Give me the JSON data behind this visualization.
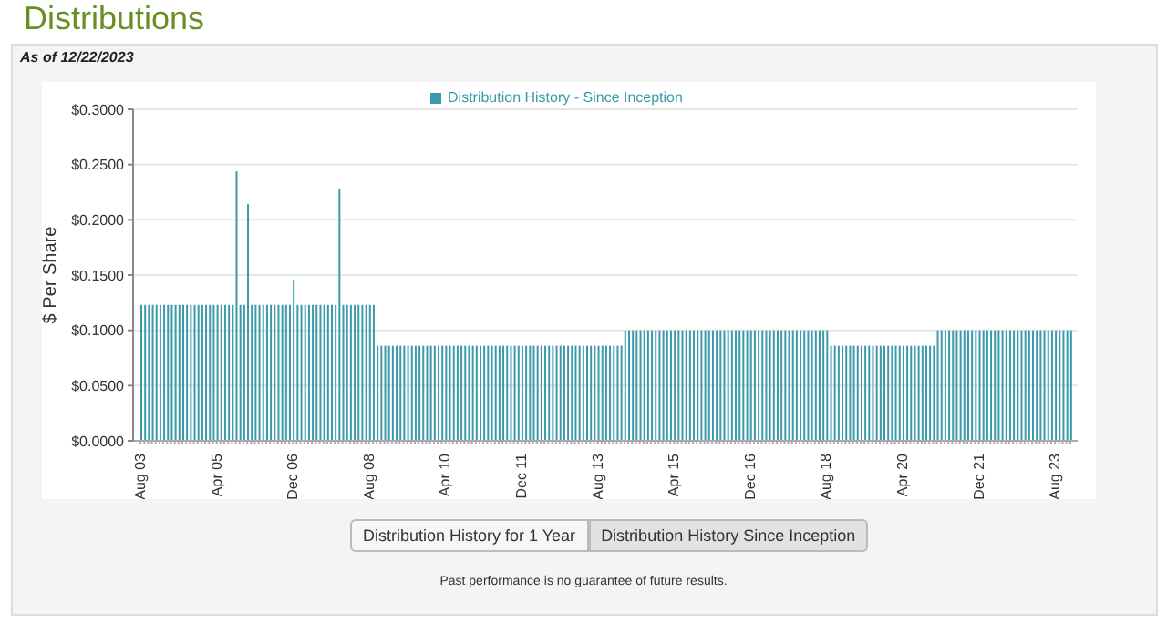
{
  "chart_data": {
    "type": "bar",
    "title": "Distributions",
    "subtitle": "As of 12/22/2023",
    "ylabel": "$ Per Share",
    "annotations": [
      "Distribution History for 1 Year",
      "Distribution History Since Inception",
      "Past performance is no guarantee of future results."
    ],
    "categories": [
      "Aug 03",
      null,
      null,
      null,
      null,
      null,
      null,
      null,
      null,
      null,
      null,
      null,
      null,
      null,
      null,
      null,
      null,
      null,
      null,
      null,
      "Apr 05",
      null,
      null,
      null,
      null,
      null,
      null,
      null,
      null,
      null,
      null,
      null,
      null,
      null,
      null,
      null,
      null,
      null,
      null,
      null,
      "Dec 06",
      null,
      null,
      null,
      null,
      null,
      null,
      null,
      null,
      null,
      null,
      null,
      null,
      null,
      null,
      null,
      null,
      null,
      null,
      null,
      "Aug 08",
      null,
      null,
      null,
      null,
      null,
      null,
      null,
      null,
      null,
      null,
      null,
      null,
      null,
      null,
      null,
      null,
      null,
      null,
      null,
      "Apr 10",
      null,
      null,
      null,
      null,
      null,
      null,
      null,
      null,
      null,
      null,
      null,
      null,
      null,
      null,
      null,
      null,
      null,
      null,
      null,
      "Dec 11",
      null,
      null,
      null,
      null,
      null,
      null,
      null,
      null,
      null,
      null,
      null,
      null,
      null,
      null,
      null,
      null,
      null,
      null,
      null,
      "Aug 13",
      null,
      null,
      null,
      null,
      null,
      null,
      null,
      null,
      null,
      null,
      null,
      null,
      null,
      null,
      null,
      null,
      null,
      null,
      null,
      "Apr 15",
      null,
      null,
      null,
      null,
      null,
      null,
      null,
      null,
      null,
      null,
      null,
      null,
      null,
      null,
      null,
      null,
      null,
      null,
      null,
      "Dec 16",
      null,
      null,
      null,
      null,
      null,
      null,
      null,
      null,
      null,
      null,
      null,
      null,
      null,
      null,
      null,
      null,
      null,
      null,
      null,
      "Aug 18",
      null,
      null,
      null,
      null,
      null,
      null,
      null,
      null,
      null,
      null,
      null,
      null,
      null,
      null,
      null,
      null,
      null,
      null,
      null,
      "Apr 20",
      null,
      null,
      null,
      null,
      null,
      null,
      null,
      null,
      null,
      null,
      null,
      null,
      null,
      null,
      null,
      null,
      null,
      null,
      null,
      "Dec 21",
      null,
      null,
      null,
      null,
      null,
      null,
      null,
      null,
      null,
      null,
      null,
      null,
      null,
      null,
      null,
      null,
      null,
      null,
      null,
      "Aug 23",
      null,
      null,
      null,
      null
    ],
    "series": [
      {
        "name": "Distribution History - Since Inception",
        "color": "#3a9aab",
        "values": [
          0.123,
          0.123,
          0.123,
          0.123,
          0.123,
          0.123,
          0.123,
          0.123,
          0.123,
          0.123,
          0.123,
          0.123,
          0.123,
          0.123,
          0.123,
          0.123,
          0.123,
          0.123,
          0.123,
          0.123,
          0.123,
          0.123,
          0.123,
          0.123,
          0.123,
          0.244,
          0.123,
          0.123,
          0.214,
          0.123,
          0.123,
          0.123,
          0.123,
          0.123,
          0.123,
          0.123,
          0.123,
          0.123,
          0.123,
          0.123,
          0.146,
          0.123,
          0.123,
          0.123,
          0.123,
          0.123,
          0.123,
          0.123,
          0.123,
          0.123,
          0.123,
          0.123,
          0.228,
          0.123,
          0.123,
          0.123,
          0.123,
          0.123,
          0.123,
          0.123,
          0.123,
          0.123,
          0.086,
          0.086,
          0.086,
          0.086,
          0.086,
          0.086,
          0.086,
          0.086,
          0.086,
          0.086,
          0.086,
          0.086,
          0.086,
          0.086,
          0.086,
          0.086,
          0.086,
          0.086,
          0.086,
          0.086,
          0.086,
          0.086,
          0.086,
          0.086,
          0.086,
          0.086,
          0.086,
          0.086,
          0.086,
          0.086,
          0.086,
          0.086,
          0.086,
          0.086,
          0.086,
          0.086,
          0.086,
          0.086,
          0.086,
          0.086,
          0.086,
          0.086,
          0.086,
          0.086,
          0.086,
          0.086,
          0.086,
          0.086,
          0.086,
          0.086,
          0.086,
          0.086,
          0.086,
          0.086,
          0.086,
          0.086,
          0.086,
          0.086,
          0.086,
          0.086,
          0.086,
          0.086,
          0.086,
          0.086,
          0.086,
          0.1,
          0.1,
          0.1,
          0.1,
          0.1,
          0.1,
          0.1,
          0.1,
          0.1,
          0.1,
          0.1,
          0.1,
          0.1,
          0.1,
          0.1,
          0.1,
          0.1,
          0.1,
          0.1,
          0.1,
          0.1,
          0.1,
          0.1,
          0.1,
          0.1,
          0.1,
          0.1,
          0.1,
          0.1,
          0.1,
          0.1,
          0.1,
          0.1,
          0.1,
          0.1,
          0.1,
          0.1,
          0.1,
          0.1,
          0.1,
          0.1,
          0.1,
          0.1,
          0.1,
          0.1,
          0.1,
          0.1,
          0.1,
          0.1,
          0.1,
          0.1,
          0.1,
          0.1,
          0.1,
          0.086,
          0.086,
          0.086,
          0.086,
          0.086,
          0.086,
          0.086,
          0.086,
          0.086,
          0.086,
          0.086,
          0.086,
          0.086,
          0.086,
          0.086,
          0.086,
          0.086,
          0.086,
          0.086,
          0.086,
          0.086,
          0.086,
          0.086,
          0.086,
          0.086,
          0.086,
          0.086,
          0.086,
          0.1,
          0.1,
          0.1,
          0.1,
          0.1,
          0.1,
          0.1,
          0.1,
          0.1,
          0.1,
          0.1,
          0.1,
          0.1,
          0.1,
          0.1,
          0.1,
          0.1,
          0.1,
          0.1,
          0.1,
          0.1,
          0.1,
          0.1,
          0.1,
          0.1,
          0.1,
          0.1,
          0.1,
          0.1,
          0.1,
          0.1,
          0.1,
          0.1,
          0.1,
          0.1,
          0.1
        ]
      }
    ],
    "ylim": [
      0,
      0.3
    ],
    "yticks": [
      {
        "value": 0,
        "label": "$0.0000"
      },
      {
        "value": 0.05,
        "label": "$0.0500"
      },
      {
        "value": 0.1,
        "label": "$0.1000"
      },
      {
        "value": 0.15,
        "label": "$0.1500"
      },
      {
        "value": 0.2,
        "label": "$0.2000"
      },
      {
        "value": 0.25,
        "label": "$0.2500"
      },
      {
        "value": 0.3,
        "label": "$0.3000"
      }
    ],
    "grid": "y",
    "legend": "top"
  }
}
